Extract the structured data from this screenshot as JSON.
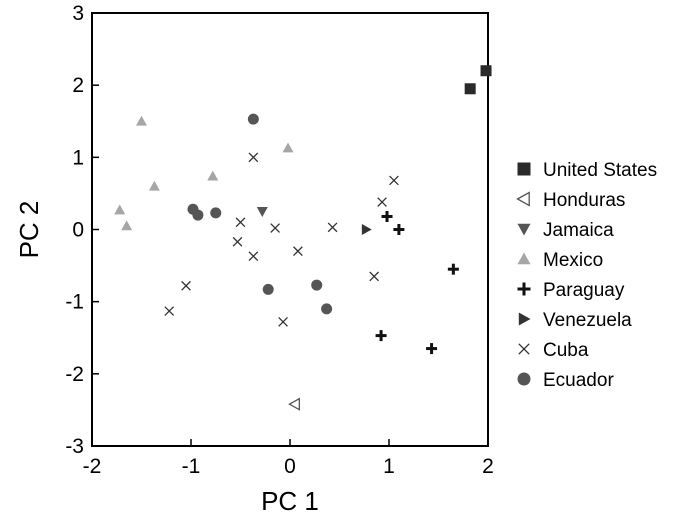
{
  "chart_data": {
    "type": "scatter",
    "title": "",
    "xlabel": "PC 1",
    "ylabel": "PC 2",
    "xlim": [
      -2,
      2
    ],
    "ylim": [
      -3,
      3
    ],
    "xticks": [
      "-2",
      "-1",
      "0",
      "1",
      "2"
    ],
    "yticks": [
      "-3",
      "-2",
      "-1",
      "0",
      "1",
      "2",
      "3"
    ],
    "legend_position": "right",
    "series": [
      {
        "name": "United States",
        "marker": "square",
        "color": "#2a2a2a",
        "points": [
          [
            1.82,
            1.95
          ],
          [
            1.98,
            2.2
          ]
        ]
      },
      {
        "name": "Honduras",
        "marker": "triangle-left-open",
        "color": "#555555",
        "points": [
          [
            0.05,
            -2.42
          ]
        ]
      },
      {
        "name": "Jamaica",
        "marker": "triangle-down",
        "color": "#555555",
        "points": [
          [
            -0.28,
            0.25
          ]
        ]
      },
      {
        "name": "Mexico",
        "marker": "triangle-up",
        "color": "#a6a6a6",
        "points": [
          [
            -1.5,
            1.5
          ],
          [
            -1.37,
            0.6
          ],
          [
            -1.72,
            0.27
          ],
          [
            -1.65,
            0.05
          ],
          [
            -0.78,
            0.74
          ],
          [
            -0.02,
            1.13
          ]
        ]
      },
      {
        "name": "Paraguay",
        "marker": "plus",
        "color": "#111111",
        "points": [
          [
            0.98,
            0.18
          ],
          [
            1.1,
            0.0
          ],
          [
            1.65,
            -0.55
          ],
          [
            0.92,
            -1.47
          ],
          [
            1.43,
            -1.65
          ]
        ]
      },
      {
        "name": "Venezuela",
        "marker": "triangle-right",
        "color": "#333333",
        "points": [
          [
            0.77,
            0.0
          ]
        ]
      },
      {
        "name": "Cuba",
        "marker": "x",
        "color": "#333333",
        "points": [
          [
            -0.37,
            1.0
          ],
          [
            0.93,
            0.38
          ],
          [
            1.05,
            0.68
          ],
          [
            -0.5,
            0.1
          ],
          [
            -0.15,
            0.02
          ],
          [
            0.43,
            0.03
          ],
          [
            -0.53,
            -0.17
          ],
          [
            -0.37,
            -0.37
          ],
          [
            0.08,
            -0.3
          ],
          [
            0.85,
            -0.65
          ],
          [
            -1.05,
            -0.78
          ],
          [
            -1.22,
            -1.13
          ],
          [
            -0.07,
            -1.28
          ]
        ]
      },
      {
        "name": "Ecuador",
        "marker": "circle",
        "color": "#555555",
        "points": [
          [
            -0.37,
            1.53
          ],
          [
            -0.98,
            0.28
          ],
          [
            -0.93,
            0.2
          ],
          [
            -0.75,
            0.23
          ],
          [
            -0.22,
            -0.83
          ],
          [
            0.27,
            -0.77
          ],
          [
            0.37,
            -1.1
          ]
        ]
      }
    ]
  }
}
